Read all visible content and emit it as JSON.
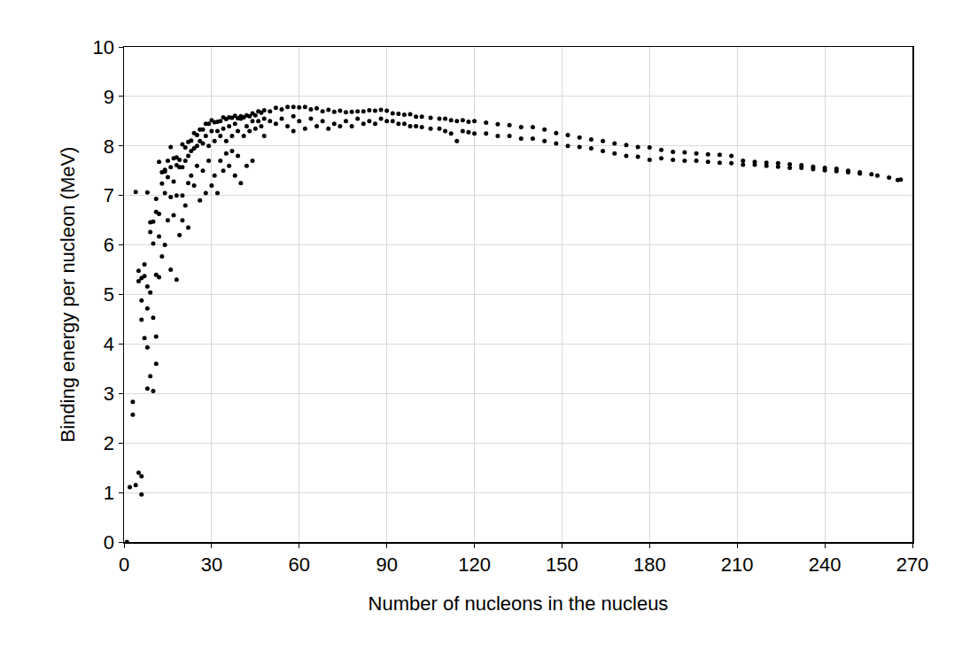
{
  "chart_data": {
    "type": "scatter",
    "x_label": "Number of nucleons in the nucleus",
    "y_label": "Binding energy per nucleon (MeV)",
    "color": "#000000",
    "marker": "circle",
    "grid": true,
    "xlim": [
      0,
      270
    ],
    "xticks": [
      0,
      30,
      60,
      90,
      120,
      150,
      180,
      210,
      240,
      270
    ],
    "ylim": [
      0,
      10
    ],
    "yticks": [
      0,
      1,
      2,
      3,
      4,
      5,
      6,
      7,
      8,
      9,
      10
    ],
    "x": [
      1,
      2,
      3,
      3,
      4,
      4,
      5,
      5,
      5,
      6,
      6,
      6,
      6,
      6,
      7,
      7,
      7,
      8,
      8,
      8,
      8,
      8,
      9,
      9,
      9,
      9,
      10,
      10,
      10,
      10,
      11,
      11,
      11,
      11,
      11,
      12,
      12,
      12,
      12,
      13,
      13,
      13,
      14,
      14,
      14,
      14,
      15,
      15,
      15,
      16,
      16,
      16,
      16,
      17,
      17,
      17,
      18,
      18,
      18,
      18,
      19,
      19,
      19,
      20,
      20,
      20,
      20,
      21,
      21,
      21,
      22,
      22,
      22,
      22,
      23,
      23,
      23,
      24,
      24,
      24,
      25,
      25,
      25,
      26,
      26,
      26,
      27,
      27,
      27,
      28,
      28,
      28,
      29,
      29,
      29,
      30,
      30,
      30,
      31,
      31,
      31,
      32,
      32,
      32,
      33,
      33,
      33,
      34,
      34,
      34,
      35,
      35,
      35,
      36,
      36,
      36,
      37,
      37,
      37,
      38,
      38,
      38,
      39,
      39,
      39,
      40,
      40,
      40,
      41,
      41,
      42,
      42,
      42,
      43,
      43,
      44,
      44,
      44,
      45,
      45,
      46,
      46,
      47,
      47,
      48,
      48,
      48,
      50,
      50,
      52,
      52,
      54,
      54,
      56,
      56,
      58,
      58,
      58,
      60,
      60,
      62,
      62,
      64,
      64,
      66,
      66,
      68,
      68,
      70,
      70,
      72,
      72,
      74,
      74,
      76,
      76,
      78,
      78,
      80,
      80,
      82,
      82,
      84,
      84,
      86,
      86,
      88,
      88,
      90,
      90,
      92,
      92,
      94,
      94,
      96,
      96,
      98,
      98,
      100,
      100,
      102,
      102,
      105,
      105,
      108,
      108,
      110,
      110,
      112,
      112,
      114,
      114,
      116,
      116,
      118,
      118,
      120,
      120,
      124,
      124,
      128,
      128,
      132,
      132,
      136,
      136,
      140,
      140,
      144,
      144,
      148,
      148,
      152,
      152,
      156,
      156,
      160,
      160,
      164,
      164,
      168,
      168,
      172,
      172,
      176,
      176,
      180,
      180,
      184,
      184,
      188,
      188,
      192,
      192,
      196,
      196,
      200,
      200,
      204,
      204,
      208,
      208,
      212,
      212,
      216,
      216,
      220,
      220,
      224,
      224,
      228,
      228,
      232,
      232,
      236,
      236,
      240,
      240,
      244,
      244,
      248,
      248,
      252,
      252,
      256,
      258,
      262,
      265,
      266
    ],
    "y": [
      0,
      1.11,
      2.57,
      2.83,
      7.07,
      1.15,
      1.4,
      5.27,
      5.48,
      1.33,
      0.96,
      5.33,
      4.88,
      4.49,
      5.61,
      5.37,
      4.12,
      7.06,
      5.16,
      3.93,
      4.72,
      3.1,
      6.46,
      5.04,
      6.26,
      3.35,
      6.47,
      6.03,
      4.53,
      3.05,
      6.93,
      6.67,
      5.4,
      3.6,
      4.15,
      7.68,
      6.63,
      6.17,
      5.35,
      7.47,
      7.24,
      5.77,
      7.52,
      7.48,
      7.05,
      6.0,
      7.7,
      7.37,
      6.5,
      7.98,
      7.57,
      6.97,
      5.5,
      7.75,
      7.28,
      6.6,
      7.77,
      7.61,
      7.0,
      5.3,
      7.57,
      7.72,
      6.2,
      8.03,
      7.57,
      7.0,
      6.5,
      7.97,
      7.7,
      6.8,
      8.08,
      7.8,
      7.25,
      6.35,
      8.11,
      7.9,
      7.4,
      8.26,
      7.95,
      7.2,
      8.22,
      8.0,
      7.6,
      8.33,
      8.1,
      6.9,
      8.33,
      8.05,
      7.5,
      8.45,
      8.2,
      7.05,
      8.45,
      8.0,
      7.7,
      8.52,
      8.3,
      7.2,
      8.48,
      8.1,
      7.4,
      8.49,
      8.3,
      7.05,
      8.5,
      8.2,
      7.7,
      8.58,
      8.35,
      7.5,
      8.54,
      8.1,
      7.85,
      8.58,
      8.4,
      7.6,
      8.57,
      8.2,
      7.9,
      8.61,
      8.45,
      7.4,
      8.56,
      8.3,
      7.8,
      8.6,
      8.55,
      7.25,
      8.58,
      8.2,
      8.62,
      8.4,
      7.6,
      8.6,
      8.3,
      8.66,
      8.5,
      7.7,
      8.62,
      8.35,
      8.7,
      8.5,
      8.67,
      8.4,
      8.72,
      8.55,
      8.2,
      8.7,
      8.5,
      8.77,
      8.45,
      8.74,
      8.55,
      8.79,
      8.4,
      8.79,
      8.6,
      8.3,
      8.78,
      8.5,
      8.79,
      8.35,
      8.74,
      8.55,
      8.76,
      8.4,
      8.7,
      8.5,
      8.73,
      8.35,
      8.69,
      8.45,
      8.71,
      8.4,
      8.68,
      8.5,
      8.69,
      8.4,
      8.7,
      8.55,
      8.7,
      8.45,
      8.72,
      8.5,
      8.71,
      8.45,
      8.73,
      8.55,
      8.71,
      8.5,
      8.66,
      8.5,
      8.65,
      8.45,
      8.63,
      8.45,
      8.64,
      8.4,
      8.59,
      8.4,
      8.59,
      8.38,
      8.57,
      8.35,
      8.55,
      8.35,
      8.55,
      8.3,
      8.52,
      8.25,
      8.5,
      8.1,
      8.52,
      8.3,
      8.49,
      8.28,
      8.5,
      8.25,
      8.47,
      8.25,
      8.44,
      8.2,
      8.42,
      8.2,
      8.38,
      8.15,
      8.38,
      8.15,
      8.33,
      8.1,
      8.26,
      8.05,
      8.22,
      8.0,
      8.17,
      7.98,
      8.13,
      7.95,
      8.1,
      7.9,
      8.05,
      7.85,
      8.02,
      7.8,
      7.98,
      7.78,
      7.97,
      7.72,
      7.92,
      7.75,
      7.88,
      7.72,
      7.87,
      7.7,
      7.85,
      7.7,
      7.83,
      7.68,
      7.82,
      7.66,
      7.8,
      7.65,
      7.7,
      7.62,
      7.68,
      7.62,
      7.66,
      7.6,
      7.65,
      7.58,
      7.63,
      7.56,
      7.61,
      7.56,
      7.58,
      7.53,
      7.56,
      7.51,
      7.54,
      7.49,
      7.5,
      7.47,
      7.47,
      7.44,
      7.43,
      7.4,
      7.36,
      7.31,
      7.32
    ]
  }
}
